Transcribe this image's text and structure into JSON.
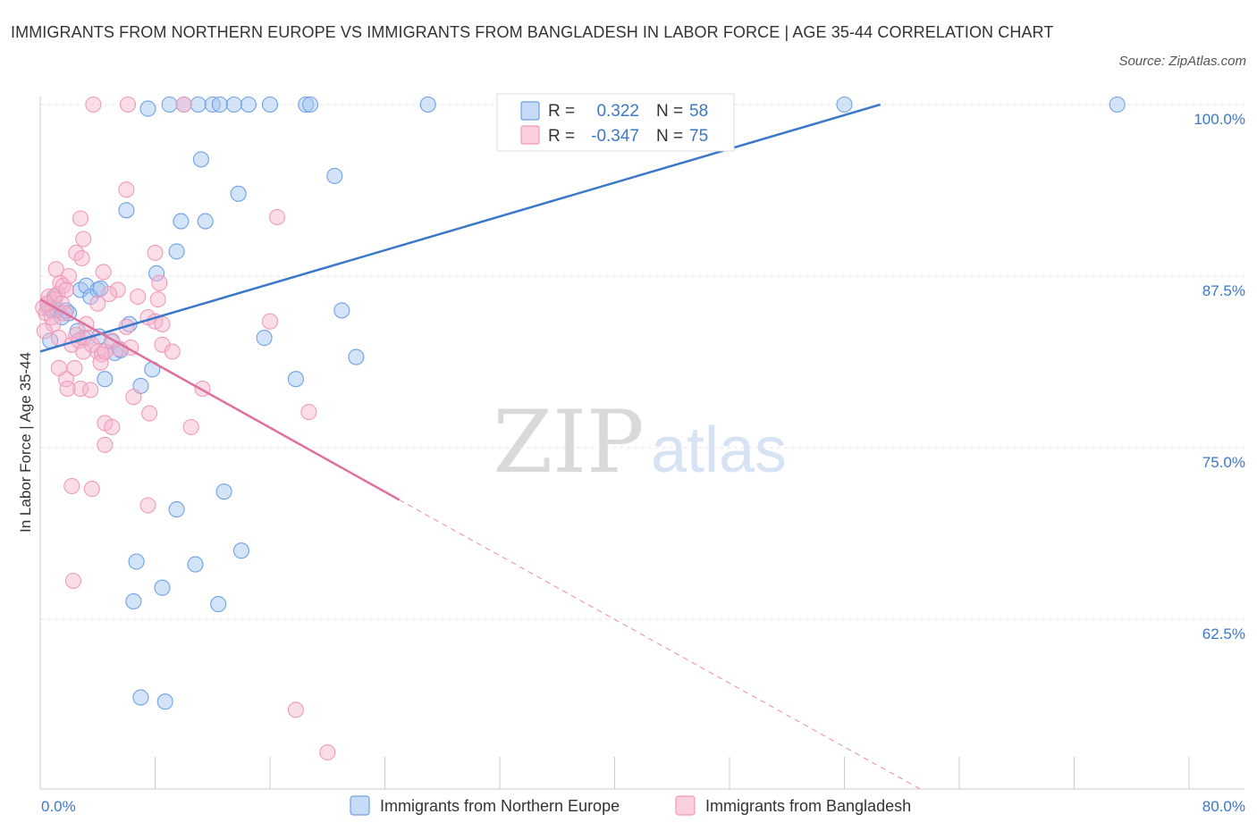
{
  "title": "IMMIGRANTS FROM NORTHERN EUROPE VS IMMIGRANTS FROM BANGLADESH IN LABOR FORCE | AGE 35-44 CORRELATION CHART",
  "source": "Source: ZipAtlas.com",
  "watermark": {
    "zip": "ZIP",
    "atlas": "atlas"
  },
  "chart_data": {
    "type": "scatter",
    "xlabel": "",
    "ylabel": "In Labor Force | Age 35-44",
    "xlim": [
      0,
      80
    ],
    "ylim": [
      50,
      100
    ],
    "x_tick_labels": {
      "min": "0.0%",
      "max": "80.0%"
    },
    "y_ticks": [
      {
        "value": 100,
        "label": "100.0%"
      },
      {
        "value": 87.5,
        "label": "87.5%"
      },
      {
        "value": 75,
        "label": "75.0%"
      },
      {
        "value": 62.5,
        "label": "62.5%"
      }
    ],
    "grid": true,
    "legend_position": "bottom",
    "series": [
      {
        "name": "Immigrants from Northern Europe",
        "color": "#6fa1e6",
        "line_color": "#3b78c9",
        "stats": {
          "r_label": "R =",
          "r_value": "0.322",
          "n_label": "N =",
          "n_value": "58"
        },
        "trend": {
          "x0": 0,
          "y0": 82.0,
          "x1": 58.5,
          "y1": 100.0
        },
        "points": [
          [
            0.5,
            85.5
          ],
          [
            0.8,
            85.0
          ],
          [
            1.0,
            86.0
          ],
          [
            1.2,
            85.0
          ],
          [
            1.5,
            84.5
          ],
          [
            0.7,
            82.8
          ],
          [
            0.6,
            85.2
          ],
          [
            1.8,
            85.0
          ],
          [
            2.0,
            84.8
          ],
          [
            2.8,
            86.5
          ],
          [
            3.2,
            86.8
          ],
          [
            3.5,
            86.0
          ],
          [
            3.0,
            83.0
          ],
          [
            4.0,
            86.5
          ],
          [
            4.2,
            86.6
          ],
          [
            2.6,
            83.5
          ],
          [
            4.1,
            83.1
          ],
          [
            5.0,
            82.7
          ],
          [
            5.2,
            81.9
          ],
          [
            5.6,
            82.1
          ],
          [
            4.5,
            80.0
          ],
          [
            6.2,
            84.0
          ],
          [
            7.0,
            79.5
          ],
          [
            7.8,
            80.7
          ],
          [
            8.1,
            87.7
          ],
          [
            7.5,
            99.7
          ],
          [
            9.0,
            100
          ],
          [
            10.0,
            100
          ],
          [
            11.0,
            100
          ],
          [
            12.0,
            100
          ],
          [
            12.5,
            100
          ],
          [
            13.5,
            100
          ],
          [
            14.5,
            100
          ],
          [
            16.0,
            100
          ],
          [
            18.5,
            100
          ],
          [
            18.8,
            100
          ],
          [
            27.0,
            100
          ],
          [
            56.0,
            100
          ],
          [
            75.0,
            100
          ],
          [
            11.2,
            96.0
          ],
          [
            20.5,
            94.8
          ],
          [
            13.8,
            93.5
          ],
          [
            6.0,
            92.3
          ],
          [
            9.8,
            91.5
          ],
          [
            11.5,
            91.5
          ],
          [
            9.5,
            89.3
          ],
          [
            21.0,
            85.0
          ],
          [
            15.6,
            83.0
          ],
          [
            17.8,
            80.0
          ],
          [
            22.0,
            81.6
          ],
          [
            9.5,
            70.5
          ],
          [
            12.8,
            71.8
          ],
          [
            14.0,
            67.5
          ],
          [
            6.7,
            66.7
          ],
          [
            10.8,
            66.5
          ],
          [
            8.5,
            64.8
          ],
          [
            6.5,
            63.8
          ],
          [
            12.4,
            63.6
          ],
          [
            7.0,
            56.8
          ],
          [
            8.7,
            56.5
          ]
        ]
      },
      {
        "name": "Immigrants from Bangladesh",
        "color": "#f09ab8",
        "line_color": "#e0709a",
        "stats": {
          "r_label": "R =",
          "r_value": "-0.347",
          "n_label": "N =",
          "n_value": "75"
        },
        "trend": {
          "x0": 0,
          "y0": 85.8,
          "x1": 25.0,
          "y1": 71.2
        },
        "trend_extension": {
          "x0": 25.0,
          "y0": 71.2,
          "x1": 61.5,
          "y1": 50.0
        },
        "points": [
          [
            0.2,
            85.2
          ],
          [
            0.4,
            84.8
          ],
          [
            0.5,
            85.5
          ],
          [
            0.6,
            86.0
          ],
          [
            0.8,
            84.5
          ],
          [
            1.0,
            85.8
          ],
          [
            1.2,
            86.2
          ],
          [
            1.4,
            87.0
          ],
          [
            1.6,
            86.8
          ],
          [
            1.8,
            86.5
          ],
          [
            2.0,
            87.5
          ],
          [
            1.1,
            88.0
          ],
          [
            1.5,
            85.5
          ],
          [
            0.9,
            84.0
          ],
          [
            0.3,
            83.5
          ],
          [
            1.3,
            83.0
          ],
          [
            2.2,
            82.5
          ],
          [
            2.5,
            83.2
          ],
          [
            2.7,
            82.8
          ],
          [
            3.0,
            82.0
          ],
          [
            3.3,
            83.0
          ],
          [
            3.6,
            82.5
          ],
          [
            4.0,
            82.0
          ],
          [
            4.3,
            81.8
          ],
          [
            2.4,
            80.8
          ],
          [
            1.8,
            80.0
          ],
          [
            2.8,
            79.3
          ],
          [
            3.5,
            79.2
          ],
          [
            1.3,
            80.8
          ],
          [
            1.9,
            79.3
          ],
          [
            4.2,
            81.2
          ],
          [
            5.0,
            82.8
          ],
          [
            5.5,
            82.2
          ],
          [
            6.0,
            83.8
          ],
          [
            6.3,
            82.3
          ],
          [
            7.5,
            84.5
          ],
          [
            8.0,
            84.2
          ],
          [
            8.5,
            82.5
          ],
          [
            9.2,
            82.0
          ],
          [
            6.5,
            78.7
          ],
          [
            7.6,
            77.5
          ],
          [
            4.5,
            76.8
          ],
          [
            5.0,
            76.5
          ],
          [
            10.5,
            76.5
          ],
          [
            11.3,
            79.3
          ],
          [
            4.5,
            75.2
          ],
          [
            2.2,
            72.2
          ],
          [
            3.6,
            72.0
          ],
          [
            7.5,
            70.8
          ],
          [
            2.3,
            65.3
          ],
          [
            6.0,
            93.8
          ],
          [
            2.8,
            91.7
          ],
          [
            3.0,
            90.2
          ],
          [
            16.5,
            91.8
          ],
          [
            2.5,
            89.2
          ],
          [
            2.9,
            88.8
          ],
          [
            8.0,
            89.2
          ],
          [
            4.4,
            87.8
          ],
          [
            5.4,
            86.5
          ],
          [
            6.8,
            86.0
          ],
          [
            8.2,
            85.8
          ],
          [
            8.3,
            87.0
          ],
          [
            4.0,
            85.5
          ],
          [
            3.2,
            84.0
          ],
          [
            1.7,
            84.8
          ],
          [
            4.8,
            86.2
          ],
          [
            16.0,
            84.2
          ],
          [
            18.7,
            77.6
          ],
          [
            17.8,
            55.9
          ],
          [
            20.0,
            52.8
          ],
          [
            3.7,
            100
          ],
          [
            6.1,
            100
          ],
          [
            10.0,
            100
          ],
          [
            8.5,
            84.0
          ],
          [
            4.5,
            82.0
          ]
        ]
      }
    ]
  }
}
